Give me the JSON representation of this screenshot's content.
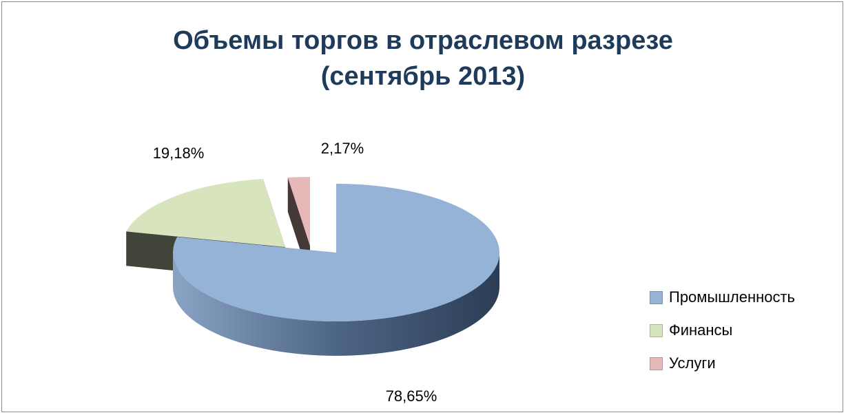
{
  "chart_data": {
    "type": "pie",
    "title": [
      "Объемы торгов в отраслевом разрезе",
      "(сентябрь 2013)"
    ],
    "categories": [
      "Промышленность",
      "Финансы",
      "Услуги"
    ],
    "values": [
      78.65,
      19.18,
      2.17
    ],
    "value_labels": [
      "78,65%",
      "19,18%",
      "2,17%"
    ],
    "colors": [
      "#95b3d7",
      "#d7e4bd",
      "#e6b9b8"
    ],
    "legend_position": "right",
    "exploded": true,
    "three_d": true
  }
}
